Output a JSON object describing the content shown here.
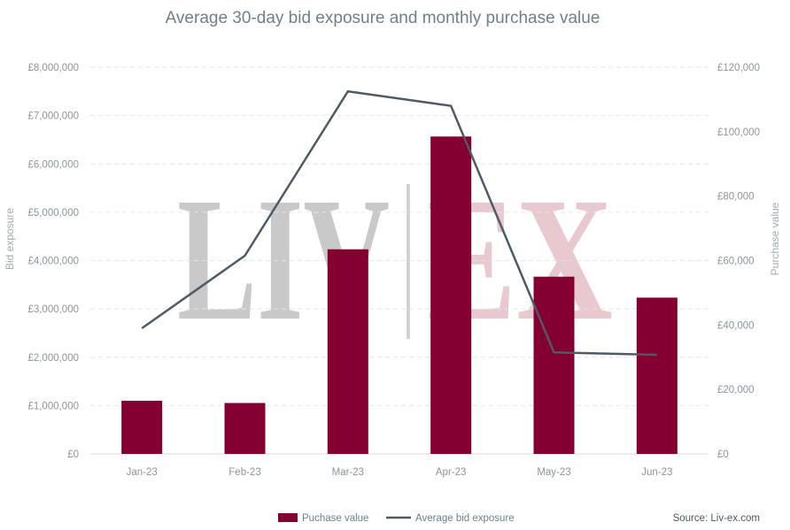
{
  "chart_data": {
    "type": "bar",
    "title": "Average 30-day bid exposure and monthly purchase value",
    "categories": [
      "Jan-23",
      "Feb-23",
      "Mar-23",
      "Apr-23",
      "May-23",
      "Jun-23"
    ],
    "series": [
      {
        "name": "Puchase value",
        "type": "bar",
        "axis": "right",
        "color": "#830030",
        "values": [
          16500,
          15800,
          63500,
          98500,
          55000,
          48500
        ]
      },
      {
        "name": "Average bid exposure",
        "type": "line",
        "axis": "left",
        "color": "#4f5a64",
        "values": [
          2600000,
          4100000,
          7500000,
          7200000,
          2100000,
          2050000
        ]
      }
    ],
    "ylabel_left": "Bid exposure",
    "ylabel_right": "Purchase value",
    "ylim_left": [
      0,
      8000000
    ],
    "ylim_right": [
      0,
      120000
    ],
    "left_ticks": [
      "£0",
      "£1,000,000",
      "£2,000,000",
      "£3,000,000",
      "£4,000,000",
      "£5,000,000",
      "£6,000,000",
      "£7,000,000",
      "£8,000,000"
    ],
    "right_ticks": [
      "£0",
      "£20,000",
      "£40,000",
      "£60,000",
      "£80,000",
      "£100,000",
      "£120,000"
    ],
    "grid": true,
    "legend_position": "bottom",
    "source": "Source: Liv-ex.com",
    "watermark": {
      "left": "LIV",
      "right": "EX",
      "left_color": "#c9c9c9",
      "right_color": "#e8c9d0"
    }
  }
}
